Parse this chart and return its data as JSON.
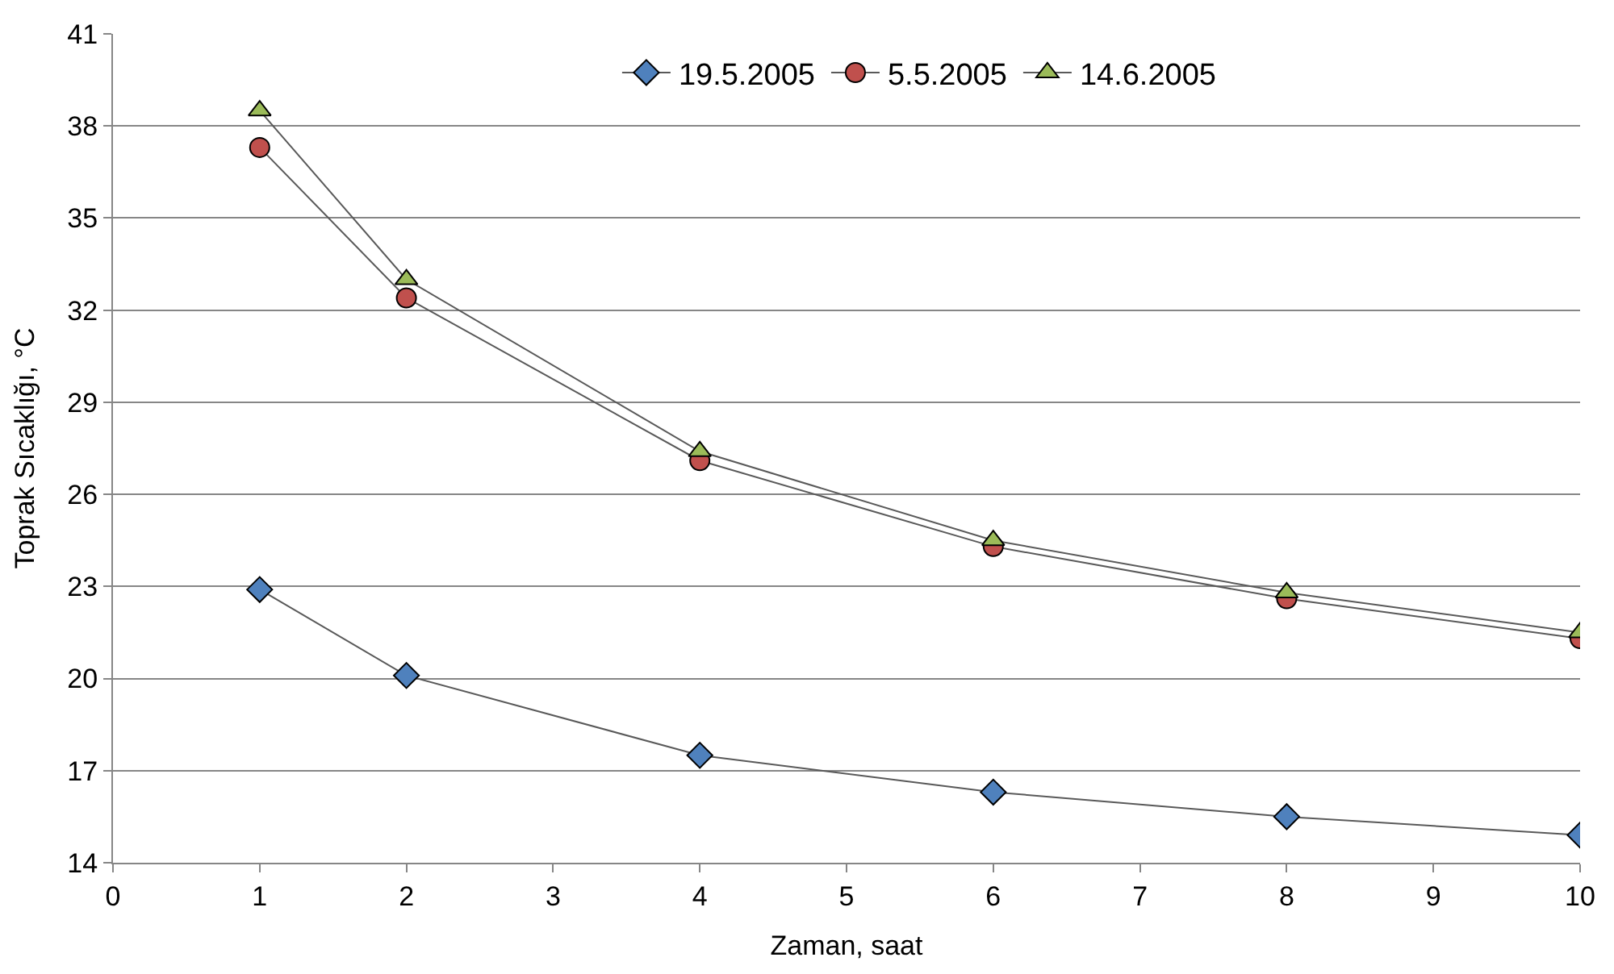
{
  "chart_data": {
    "type": "line",
    "xlabel": "Zaman, saat",
    "ylabel": "Toprak Sıcaklığı, °C",
    "x": [
      1,
      2,
      4,
      6,
      8,
      10
    ],
    "series": [
      {
        "name": "19.5.2005",
        "color": "#4f81bd",
        "marker": "diamond",
        "values": [
          22.9,
          20.1,
          17.5,
          16.3,
          15.5,
          14.9
        ]
      },
      {
        "name": "5.5.2005",
        "color": "#c0504d",
        "marker": "circle",
        "values": [
          37.3,
          32.4,
          27.1,
          24.3,
          22.6,
          21.3
        ]
      },
      {
        "name": "14.6.2005",
        "color": "#9bbb59",
        "marker": "triangle",
        "values": [
          38.5,
          33.0,
          27.4,
          24.5,
          22.8,
          21.5
        ]
      }
    ],
    "xlim": [
      0,
      10
    ],
    "xticks": [
      0,
      1,
      2,
      3,
      4,
      5,
      6,
      7,
      8,
      9,
      10
    ],
    "ylim": [
      14,
      41
    ],
    "yticks": [
      14,
      17,
      20,
      23,
      26,
      29,
      32,
      35,
      38,
      41
    ],
    "grid": "y",
    "legend": "top",
    "line_style": "solid"
  }
}
